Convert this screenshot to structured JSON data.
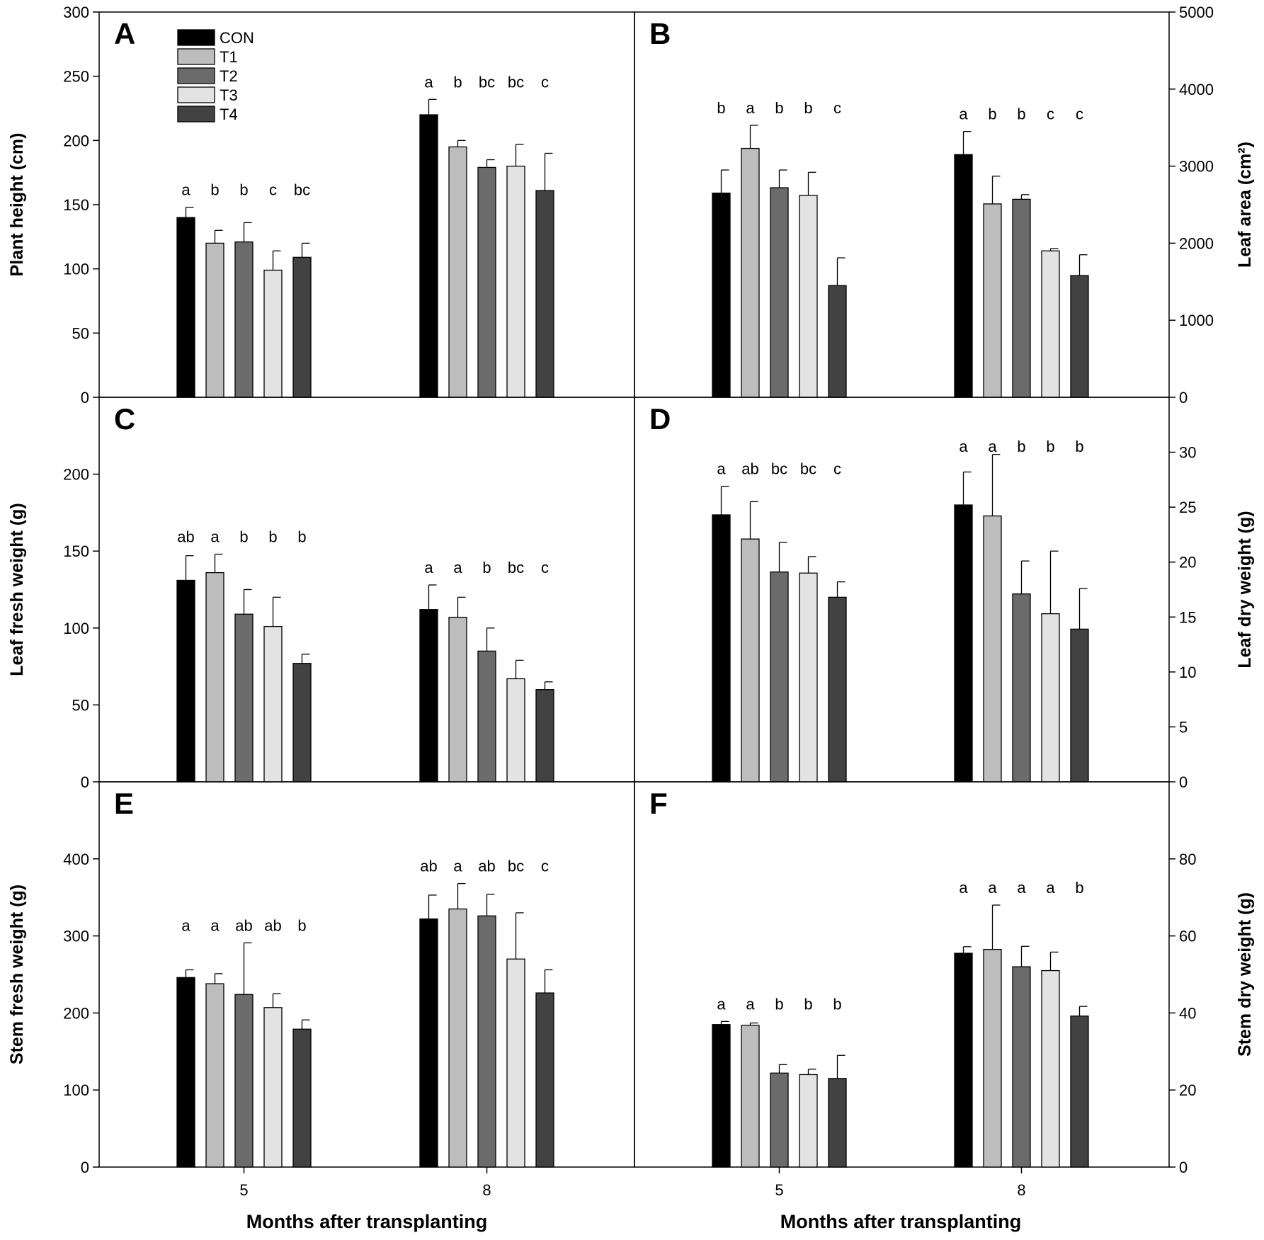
{
  "colors": {
    "CON": "#000000",
    "T1": "#bdbdbd",
    "T2": "#6b6b6b",
    "T3": "#e3e3e3",
    "T4": "#424242"
  },
  "legend": [
    "CON",
    "T1",
    "T2",
    "T3",
    "T4"
  ],
  "xaxis": {
    "categories": [
      "5",
      "8"
    ],
    "label": "Months after transplanting"
  },
  "chart_data": [
    {
      "panel": "A",
      "type": "bar",
      "ylabel": "Plant height (cm)",
      "ylabel_side": "left",
      "ylim": [
        0,
        300
      ],
      "yticks": [
        0,
        50,
        100,
        150,
        200,
        250,
        300
      ],
      "categories": [
        "5",
        "8"
      ],
      "series": [
        {
          "name": "CON",
          "values": [
            140,
            220
          ],
          "errors": [
            8,
            12
          ]
        },
        {
          "name": "T1",
          "values": [
            120,
            195
          ],
          "errors": [
            10,
            5
          ]
        },
        {
          "name": "T2",
          "values": [
            121,
            179
          ],
          "errors": [
            15,
            6
          ]
        },
        {
          "name": "T3",
          "values": [
            99,
            180
          ],
          "errors": [
            15,
            17
          ]
        },
        {
          "name": "T4",
          "values": [
            109,
            161
          ],
          "errors": [
            11,
            29
          ]
        }
      ],
      "letters": [
        [
          "a",
          "b",
          "b",
          "c",
          "bc"
        ],
        [
          "a",
          "b",
          "bc",
          "bc",
          "c"
        ]
      ]
    },
    {
      "panel": "B",
      "type": "bar",
      "ylabel": "Leaf area (cm²)",
      "ylabel_side": "right",
      "ylim": [
        0,
        5000
      ],
      "yticks": [
        0,
        1000,
        2000,
        3000,
        4000,
        5000
      ],
      "categories": [
        "5",
        "8"
      ],
      "series": [
        {
          "name": "CON",
          "values": [
            2650,
            3150
          ],
          "errors": [
            300,
            300
          ]
        },
        {
          "name": "T1",
          "values": [
            3230,
            2510
          ],
          "errors": [
            300,
            360
          ]
        },
        {
          "name": "T2",
          "values": [
            2720,
            2570
          ],
          "errors": [
            230,
            60
          ]
        },
        {
          "name": "T3",
          "values": [
            2620,
            1900
          ],
          "errors": [
            300,
            30
          ]
        },
        {
          "name": "T4",
          "values": [
            1450,
            1580
          ],
          "errors": [
            360,
            270
          ]
        }
      ],
      "letters": [
        [
          "b",
          "a",
          "b",
          "b",
          "c"
        ],
        [
          "a",
          "b",
          "b",
          "c",
          "c"
        ]
      ]
    },
    {
      "panel": "C",
      "type": "bar",
      "ylabel": "Leaf fresh weight (g)",
      "ylabel_side": "left",
      "ylim": [
        0,
        250
      ],
      "yticks": [
        0,
        50,
        100,
        150,
        200
      ],
      "categories": [
        "5",
        "8"
      ],
      "series": [
        {
          "name": "CON",
          "values": [
            131,
            112
          ],
          "errors": [
            16,
            16
          ]
        },
        {
          "name": "T1",
          "values": [
            136,
            107
          ],
          "errors": [
            12,
            13
          ]
        },
        {
          "name": "T2",
          "values": [
            109,
            85
          ],
          "errors": [
            16,
            15
          ]
        },
        {
          "name": "T3",
          "values": [
            101,
            67
          ],
          "errors": [
            19,
            12
          ]
        },
        {
          "name": "T4",
          "values": [
            77,
            60
          ],
          "errors": [
            6,
            5
          ]
        }
      ],
      "letters": [
        [
          "ab",
          "a",
          "b",
          "b",
          "b"
        ],
        [
          "a",
          "a",
          "b",
          "bc",
          "c"
        ]
      ]
    },
    {
      "panel": "D",
      "type": "bar",
      "ylabel": "Leaf dry weight (g)",
      "ylabel_side": "right",
      "ylim": [
        0,
        35
      ],
      "yticks": [
        0,
        5,
        10,
        15,
        20,
        25,
        30
      ],
      "categories": [
        "5",
        "8"
      ],
      "series": [
        {
          "name": "CON",
          "values": [
            24.3,
            25.2
          ],
          "errors": [
            2.6,
            3.0
          ]
        },
        {
          "name": "T1",
          "values": [
            22.1,
            24.2
          ],
          "errors": [
            3.4,
            5.6
          ]
        },
        {
          "name": "T2",
          "values": [
            19.1,
            17.1
          ],
          "errors": [
            2.7,
            3.0
          ]
        },
        {
          "name": "T3",
          "values": [
            19.0,
            15.3
          ],
          "errors": [
            1.5,
            5.7
          ]
        },
        {
          "name": "T4",
          "values": [
            16.8,
            13.9
          ],
          "errors": [
            1.4,
            3.7
          ]
        }
      ],
      "letters": [
        [
          "a",
          "ab",
          "bc",
          "bc",
          "c"
        ],
        [
          "a",
          "a",
          "b",
          "b",
          "b"
        ]
      ]
    },
    {
      "panel": "E",
      "type": "bar",
      "ylabel": "Stem fresh weight (g)",
      "ylabel_side": "left",
      "ylim": [
        0,
        500
      ],
      "yticks": [
        0,
        100,
        200,
        300,
        400
      ],
      "categories": [
        "5",
        "8"
      ],
      "series": [
        {
          "name": "CON",
          "values": [
            246,
            322
          ],
          "errors": [
            10,
            31
          ]
        },
        {
          "name": "T1",
          "values": [
            238,
            335
          ],
          "errors": [
            13,
            33
          ]
        },
        {
          "name": "T2",
          "values": [
            224,
            326
          ],
          "errors": [
            67,
            28
          ]
        },
        {
          "name": "T3",
          "values": [
            207,
            270
          ],
          "errors": [
            18,
            60
          ]
        },
        {
          "name": "T4",
          "values": [
            179,
            226
          ],
          "errors": [
            12,
            30
          ]
        }
      ],
      "letters": [
        [
          "a",
          "a",
          "ab",
          "ab",
          "b"
        ],
        [
          "ab",
          "a",
          "ab",
          "bc",
          "c"
        ]
      ]
    },
    {
      "panel": "F",
      "type": "bar",
      "ylabel": "Stem dry weight (g)",
      "ylabel_side": "right",
      "ylim": [
        0,
        100
      ],
      "yticks": [
        0,
        20,
        40,
        60,
        80
      ],
      "categories": [
        "5",
        "8"
      ],
      "series": [
        {
          "name": "CON",
          "values": [
            37,
            55.5
          ],
          "errors": [
            0.8,
            1.7
          ]
        },
        {
          "name": "T1",
          "values": [
            36.8,
            56.5
          ],
          "errors": [
            0.6,
            11.5
          ]
        },
        {
          "name": "T2",
          "values": [
            24.4,
            52
          ],
          "errors": [
            2.2,
            5.3
          ]
        },
        {
          "name": "T3",
          "values": [
            24,
            51
          ],
          "errors": [
            1.4,
            4.8
          ]
        },
        {
          "name": "T4",
          "values": [
            23,
            39.2
          ],
          "errors": [
            6,
            2.5
          ]
        }
      ],
      "letters": [
        [
          "a",
          "a",
          "b",
          "b",
          "b"
        ],
        [
          "a",
          "a",
          "a",
          "a",
          "b"
        ]
      ]
    }
  ]
}
